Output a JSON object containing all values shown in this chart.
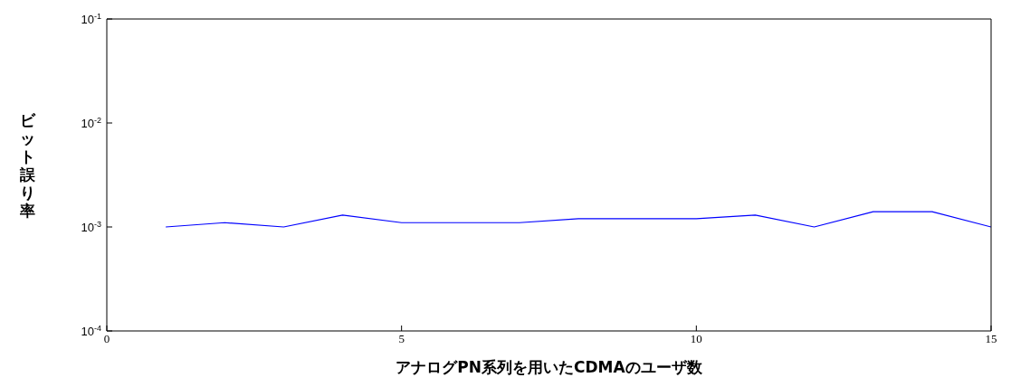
{
  "chart_data": {
    "type": "line",
    "xlabel": "アナログPN系列を用いたCDMAのユーザ数",
    "ylabel": "ビット誤り率",
    "x": [
      1,
      2,
      3,
      4,
      5,
      6,
      7,
      8,
      9,
      10,
      11,
      12,
      13,
      14,
      15
    ],
    "series": [
      {
        "color": "#0000ff",
        "values": [
          0.001,
          0.0011,
          0.001,
          0.0013,
          0.0011,
          0.0011,
          0.0011,
          0.0012,
          0.0012,
          0.0012,
          0.0013,
          0.001,
          0.0014,
          0.0014,
          0.001
        ]
      }
    ],
    "xlim": [
      0,
      15
    ],
    "xticks": [
      0,
      5,
      10,
      15
    ],
    "ylim": [
      0.0001,
      0.1
    ],
    "yticks": [
      {
        "value": 0.0001,
        "label": "10$^{-4}$"
      },
      {
        "value": 0.001,
        "label": "10$^{-3}$"
      },
      {
        "value": 0.01,
        "label": "10$^{-2}$"
      },
      {
        "value": 0.1,
        "label": "10$^{-1}$"
      }
    ],
    "log": "y",
    "grid": false,
    "marker": "none",
    "line_style": "solid"
  }
}
